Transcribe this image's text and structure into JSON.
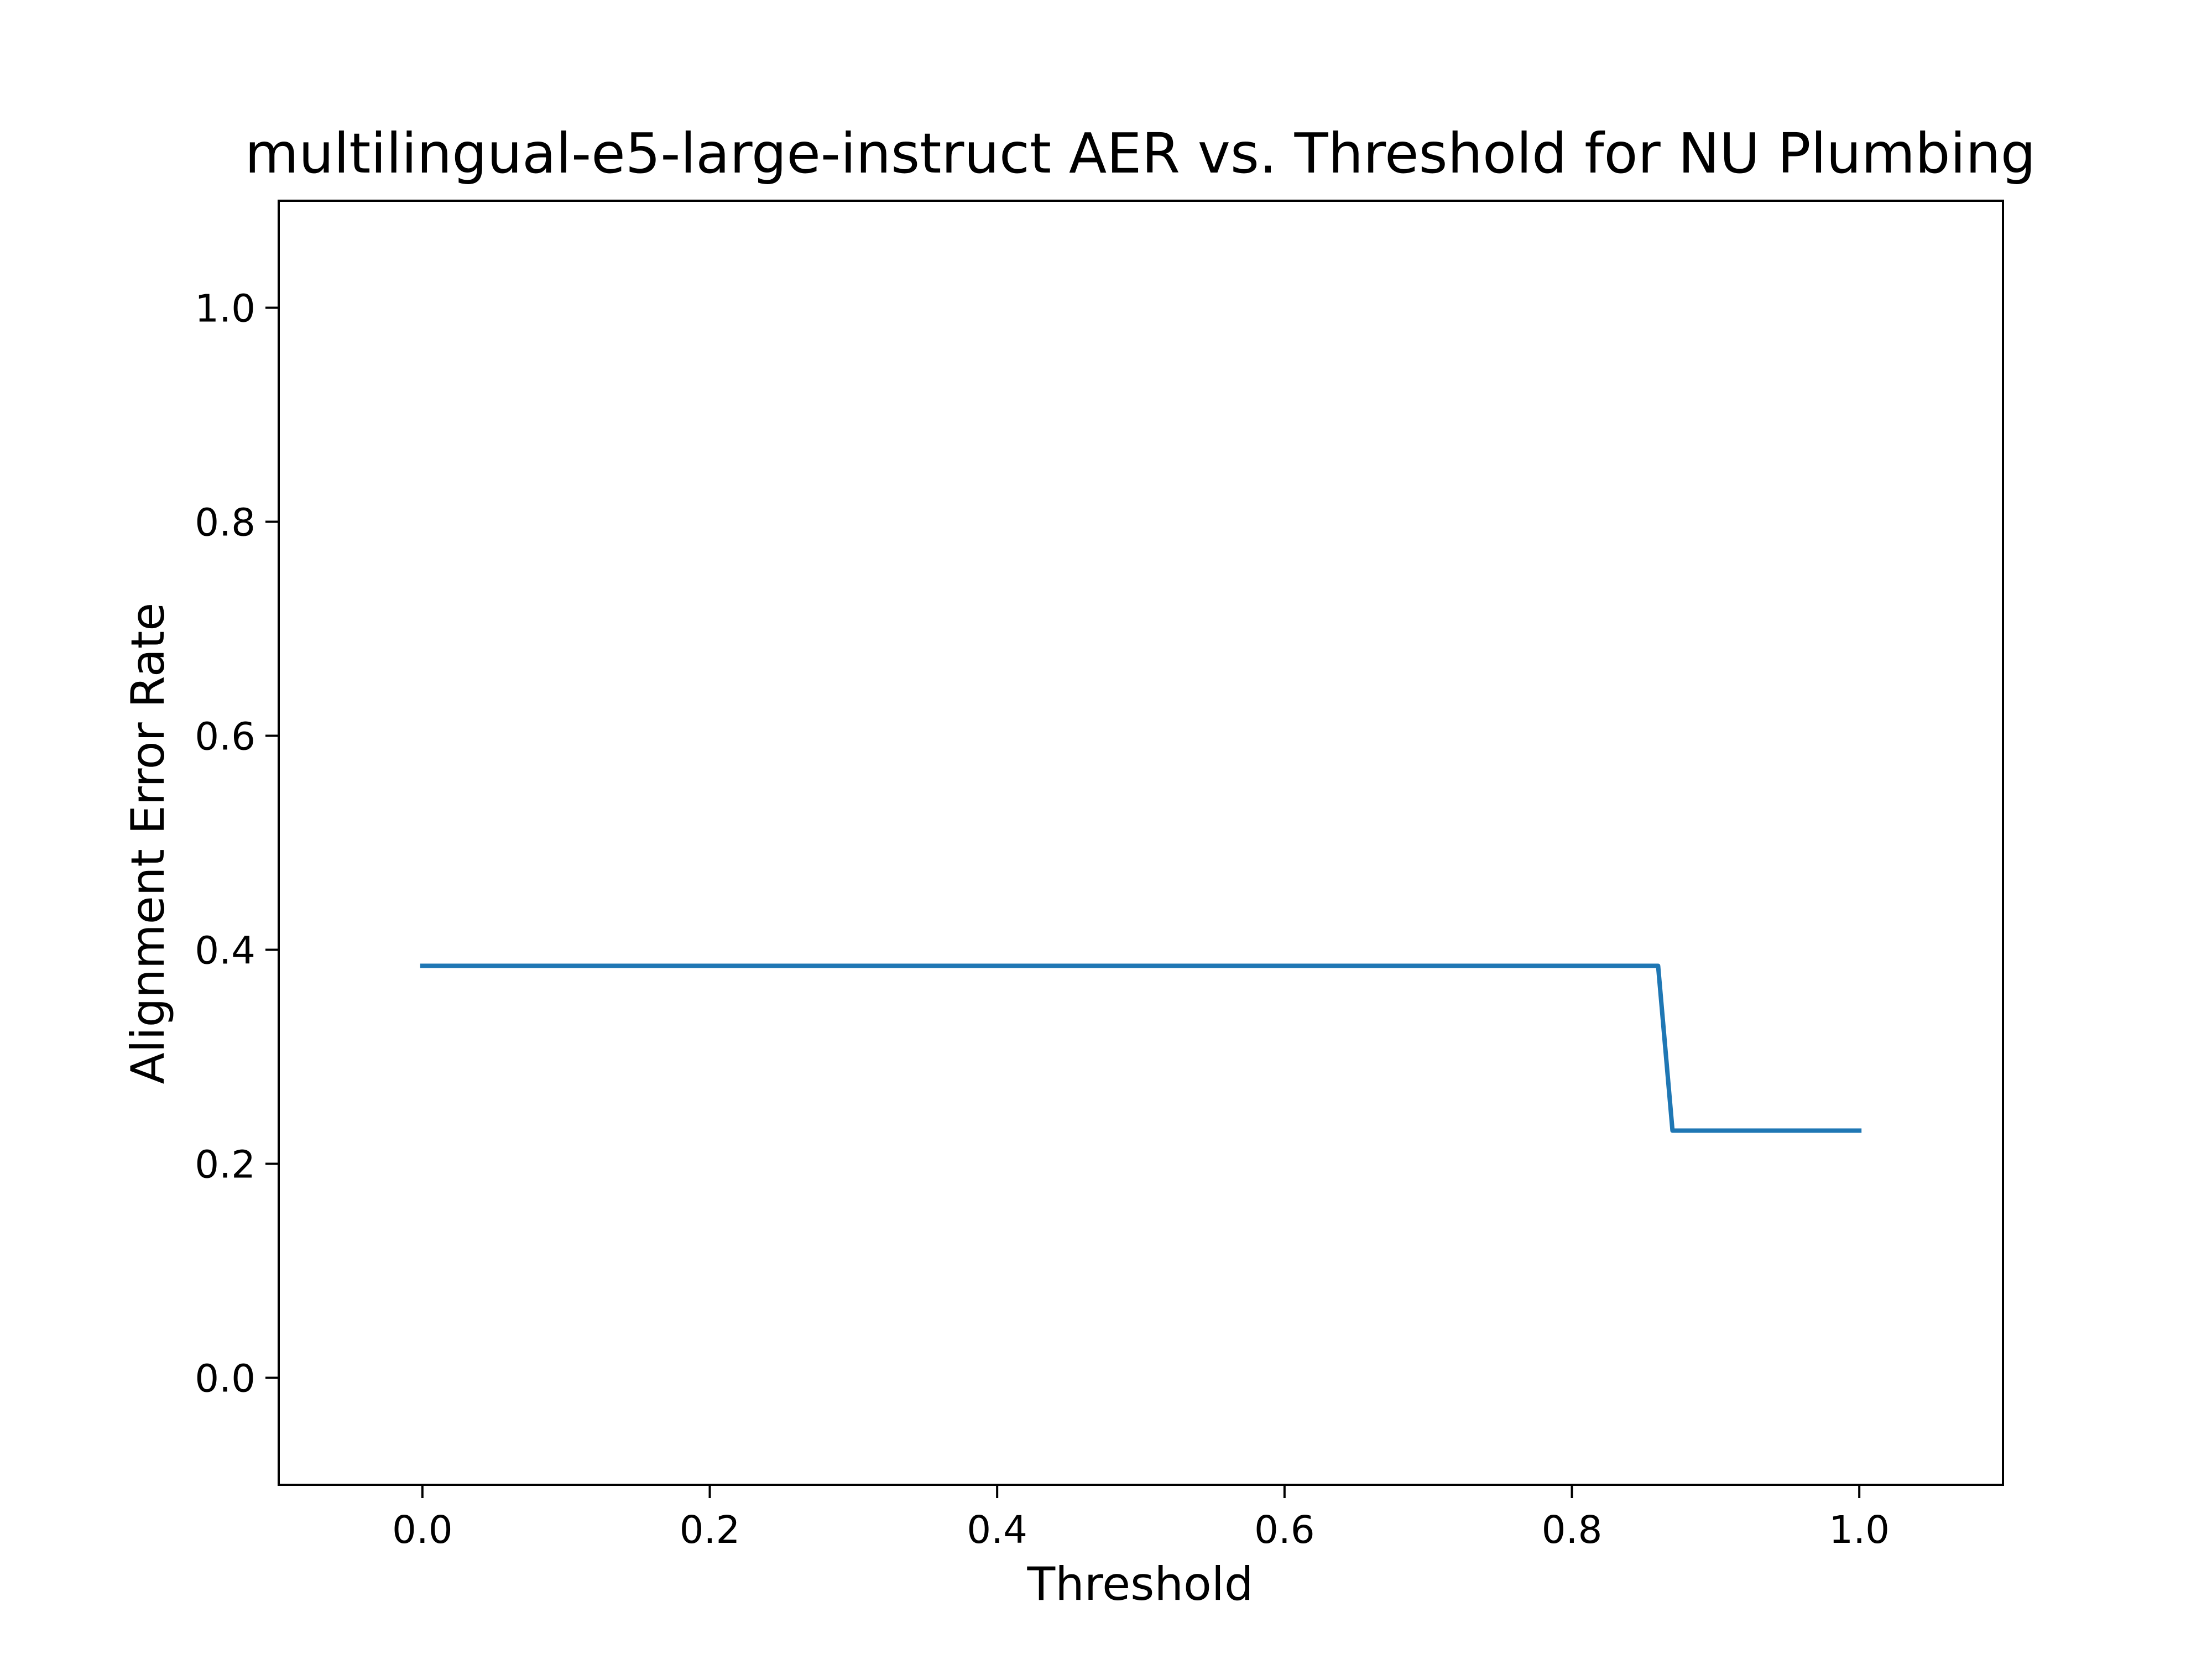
{
  "chart_data": {
    "type": "line",
    "title": "multilingual-e5-large-instruct AER vs. Threshold for NU Plumbing",
    "xlabel": "Threshold",
    "ylabel": "Alignment Error Rate",
    "xlim": [
      -0.1,
      1.1
    ],
    "ylim": [
      -0.1,
      1.1
    ],
    "x_ticks": [
      "0.0",
      "0.2",
      "0.4",
      "0.6",
      "0.8",
      "1.0"
    ],
    "y_ticks": [
      "0.0",
      "0.2",
      "0.4",
      "0.6",
      "0.8",
      "1.0"
    ],
    "grid": false,
    "legend": "none",
    "series": [
      {
        "color": "#1f77b4",
        "x": [
          0.0,
          0.86,
          0.87,
          1.0
        ],
        "y": [
          0.385,
          0.385,
          0.231,
          0.231
        ]
      }
    ]
  }
}
